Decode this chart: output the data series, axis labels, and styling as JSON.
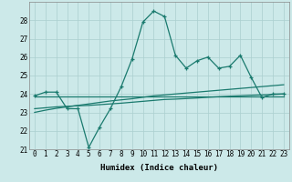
{
  "x": [
    0,
    1,
    2,
    3,
    4,
    5,
    6,
    7,
    8,
    9,
    10,
    11,
    12,
    13,
    14,
    15,
    16,
    17,
    18,
    19,
    20,
    21,
    22,
    23
  ],
  "y_main": [
    23.9,
    24.1,
    24.1,
    23.2,
    23.2,
    21.1,
    22.2,
    23.2,
    24.4,
    25.9,
    27.9,
    28.5,
    28.2,
    26.1,
    25.4,
    25.8,
    26.0,
    25.4,
    25.5,
    26.1,
    24.9,
    23.8,
    24.0,
    24.0
  ],
  "y_trend1": [
    23.85,
    23.85,
    23.85,
    23.85,
    23.85,
    23.85,
    23.85,
    23.85,
    23.85,
    23.85,
    23.85,
    23.85,
    23.85,
    23.85,
    23.85,
    23.85,
    23.85,
    23.85,
    23.85,
    23.85,
    23.85,
    23.85,
    23.85,
    23.85
  ],
  "y_trend2": [
    23.2,
    23.25,
    23.3,
    23.33,
    23.36,
    23.38,
    23.42,
    23.46,
    23.5,
    23.55,
    23.6,
    23.65,
    23.7,
    23.72,
    23.75,
    23.78,
    23.82,
    23.85,
    23.88,
    23.9,
    23.93,
    23.95,
    23.97,
    24.0
  ],
  "y_trend3": [
    23.0,
    23.12,
    23.22,
    23.3,
    23.38,
    23.46,
    23.54,
    23.62,
    23.68,
    23.74,
    23.82,
    23.9,
    23.95,
    24.0,
    24.05,
    24.1,
    24.15,
    24.2,
    24.25,
    24.3,
    24.35,
    24.4,
    24.45,
    24.5
  ],
  "color_main": "#1a7a6e",
  "color_trend": "#1a7a6e",
  "background_color": "#cce9e9",
  "grid_color": "#aacfcf",
  "xlabel": "Humidex (Indice chaleur)",
  "ylim": [
    21,
    29
  ],
  "xlim": [
    -0.5,
    23.5
  ],
  "yticks": [
    21,
    22,
    23,
    24,
    25,
    26,
    27,
    28
  ],
  "xticks": [
    0,
    1,
    2,
    3,
    4,
    5,
    6,
    7,
    8,
    9,
    10,
    11,
    12,
    13,
    14,
    15,
    16,
    17,
    18,
    19,
    20,
    21,
    22,
    23
  ],
  "tick_fontsize": 5.5,
  "xlabel_fontsize": 6.5
}
